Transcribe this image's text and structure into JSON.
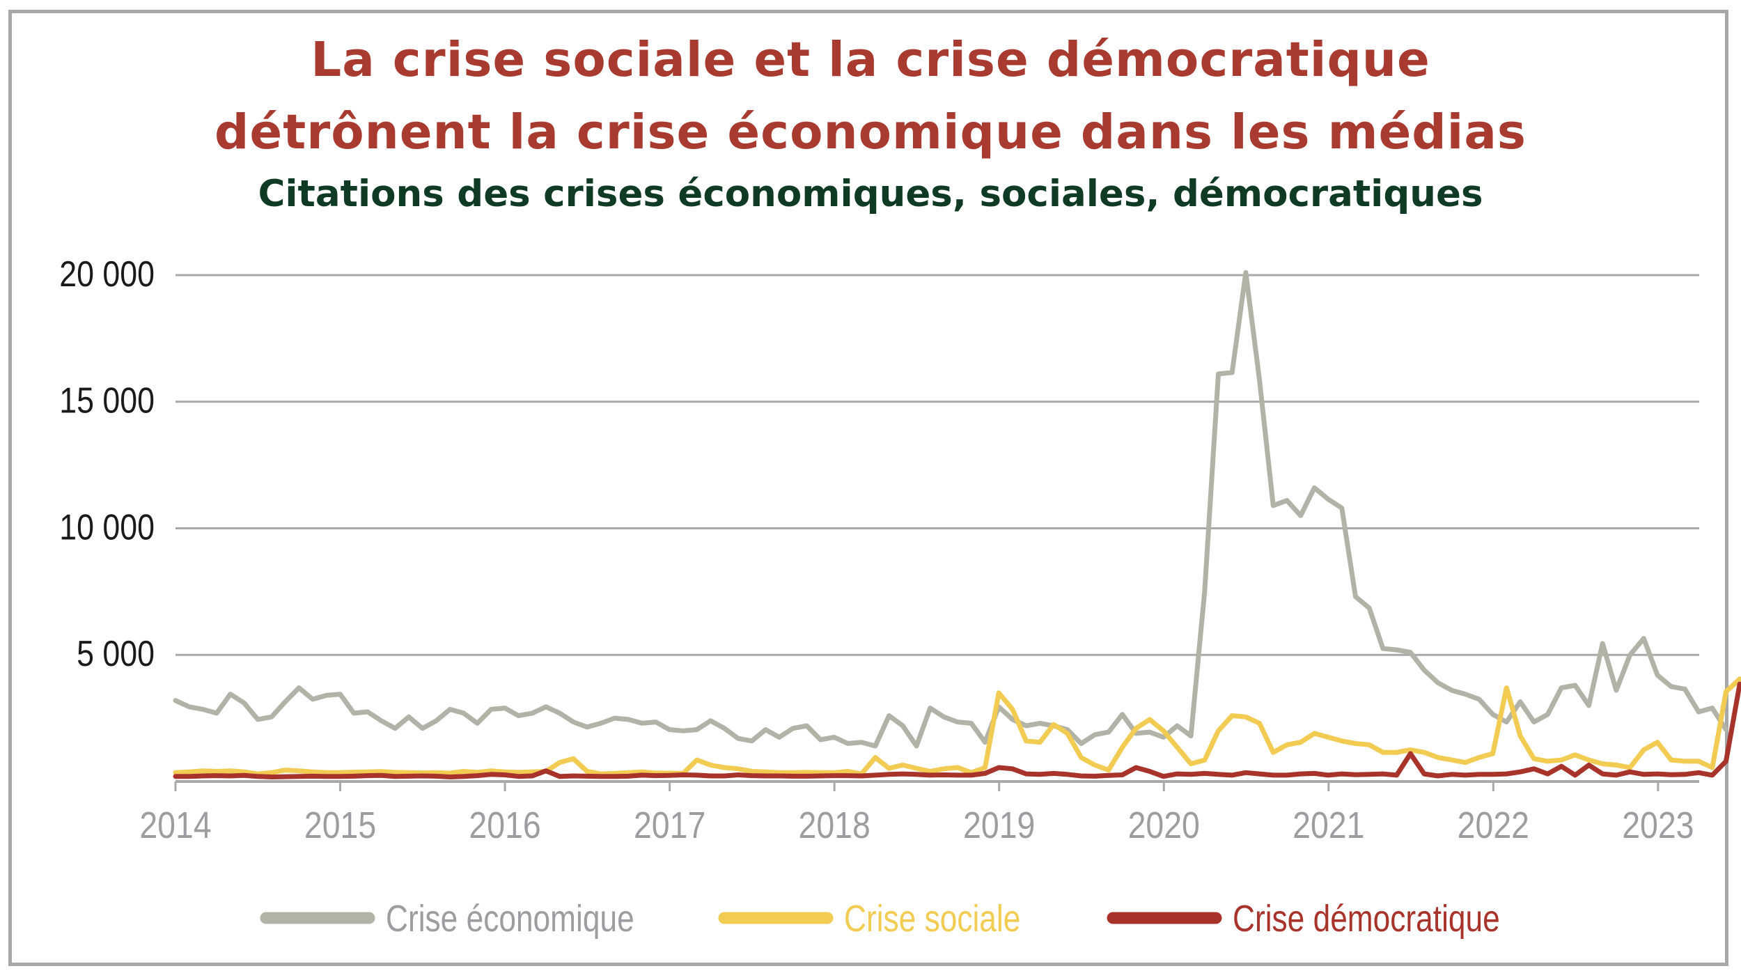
{
  "title_line1": "La crise sociale et la crise démocratique",
  "title_line2": "détrônent la crise économique dans les médias",
  "subtitle": "Citations des crises économiques, sociales, démocratiques",
  "colors": {
    "title": "#a93a2f",
    "subtitle": "#0f3a24",
    "grid": "#a7a9ab",
    "axis_text": "#9b9da0",
    "frame": "#a7a7a7"
  },
  "chart_data": {
    "type": "line",
    "title": "La crise sociale et la crise démocratique détrônent la crise économique dans les médias",
    "subtitle": "Citations des crises économiques, sociales, démocratiques",
    "xlabel": "",
    "ylabel": "",
    "x_start": 2014,
    "x_step": 0.0833,
    "ylim": [
      0,
      20000
    ],
    "yticks": [
      5000,
      10000,
      15000,
      20000
    ],
    "ytick_labels": [
      "5 000",
      "10 000",
      "15 000",
      "20 000"
    ],
    "xticks": [
      2014,
      2015,
      2016,
      2017,
      2018,
      2019,
      2020,
      2021,
      2022,
      2023
    ],
    "xtick_labels": [
      "2014",
      "2015",
      "2016",
      "2017",
      "2018",
      "2019",
      "2020",
      "2021",
      "2022",
      "2023"
    ],
    "grid": true,
    "legend_position": "bottom",
    "series": [
      {
        "name": "Crise économique",
        "color": "#b3b2a6",
        "values": [
          3200,
          2950,
          2850,
          2700,
          3450,
          3100,
          2450,
          2550,
          3150,
          3700,
          3250,
          3400,
          3450,
          2700,
          2750,
          2400,
          2100,
          2550,
          2100,
          2400,
          2850,
          2700,
          2300,
          2850,
          2900,
          2600,
          2700,
          2950,
          2700,
          2350,
          2150,
          2300,
          2500,
          2450,
          2300,
          2350,
          2050,
          2000,
          2050,
          2400,
          2100,
          1700,
          1600,
          2050,
          1750,
          2100,
          2200,
          1650,
          1750,
          1500,
          1550,
          1400,
          2600,
          2200,
          1400,
          2900,
          2550,
          2350,
          2300,
          1550,
          2950,
          2450,
          2200,
          2300,
          2200,
          2050,
          1500,
          1850,
          1950,
          2650,
          1900,
          1950,
          1750,
          2200,
          1800,
          7500,
          16100,
          16150,
          20100,
          15850,
          10900,
          11100,
          10500,
          11600,
          11150,
          10800,
          7300,
          6850,
          5250,
          5200,
          5100,
          4400,
          3900,
          3600,
          3450,
          3250,
          2650,
          2350,
          3150,
          2350,
          2650,
          3700,
          3800,
          3000,
          5450,
          3600,
          5000,
          5650,
          4200,
          3750,
          3650,
          2750,
          2900,
          2050
        ]
      },
      {
        "name": "Crise sociale",
        "color": "#f1cb52",
        "values": [
          350,
          380,
          420,
          400,
          420,
          380,
          300,
          350,
          450,
          420,
          380,
          350,
          350,
          370,
          380,
          390,
          360,
          350,
          340,
          350,
          330,
          400,
          360,
          420,
          380,
          360,
          380,
          400,
          750,
          900,
          400,
          300,
          320,
          350,
          380,
          330,
          330,
          320,
          850,
          650,
          550,
          500,
          400,
          380,
          350,
          350,
          360,
          350,
          350,
          400,
          300,
          950,
          520,
          650,
          520,
          400,
          500,
          550,
          350,
          550,
          3500,
          2850,
          1600,
          1550,
          2250,
          1900,
          950,
          650,
          450,
          1350,
          2100,
          2450,
          2000,
          1350,
          700,
          850,
          2000,
          2600,
          2550,
          2300,
          1150,
          1450,
          1550,
          1900,
          1750,
          1600,
          1500,
          1450,
          1150,
          1150,
          1250,
          1150,
          950,
          850,
          750,
          950,
          1100,
          3700,
          1800,
          900,
          800,
          850,
          1050,
          850,
          700,
          650,
          550,
          1250,
          1550,
          850,
          800,
          800,
          550,
          3550,
          4050
        ]
      },
      {
        "name": "Crise démocratique",
        "color": "#a8332a",
        "values": [
          200,
          200,
          220,
          230,
          220,
          240,
          200,
          180,
          190,
          200,
          210,
          200,
          200,
          210,
          230,
          240,
          200,
          210,
          220,
          210,
          180,
          200,
          230,
          280,
          260,
          200,
          220,
          420,
          200,
          220,
          210,
          200,
          200,
          210,
          250,
          230,
          240,
          260,
          250,
          220,
          220,
          260,
          230,
          220,
          220,
          210,
          210,
          220,
          230,
          230,
          220,
          250,
          280,
          300,
          280,
          250,
          260,
          250,
          250,
          320,
          550,
          500,
          300,
          280,
          320,
          280,
          220,
          210,
          240,
          260,
          550,
          400,
          200,
          300,
          280,
          320,
          280,
          250,
          350,
          300,
          250,
          250,
          300,
          320,
          250,
          300,
          270,
          280,
          300,
          250,
          1100,
          300,
          220,
          280,
          250,
          280,
          280,
          300,
          380,
          500,
          300,
          600,
          250,
          650,
          300,
          250,
          380,
          280,
          300,
          270,
          280,
          350,
          250,
          800,
          3850
        ]
      }
    ]
  }
}
